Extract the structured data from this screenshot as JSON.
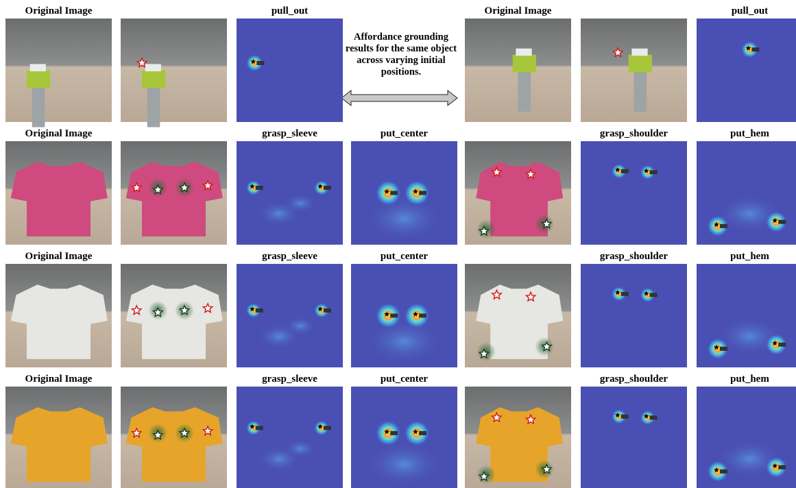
{
  "caption": "Affordance grounding results for the same object across varying initial positions.",
  "rows": [
    {
      "labels": [
        "Original Image",
        null,
        "pull_out",
        null,
        "Original Image",
        null,
        "pull_out"
      ]
    },
    {
      "labels": [
        "Original Image",
        null,
        "grasp_sleeve",
        "put_center",
        null,
        "grasp_shoulder",
        "put_hem"
      ]
    },
    {
      "labels": [
        "Original Image",
        null,
        "grasp_sleeve",
        "put_center",
        null,
        "grasp_shoulder",
        "put_hem"
      ]
    },
    {
      "labels": [
        "Original Image",
        null,
        "grasp_sleeve",
        "put_center",
        null,
        "grasp_shoulder",
        "put_hem"
      ]
    }
  ]
}
